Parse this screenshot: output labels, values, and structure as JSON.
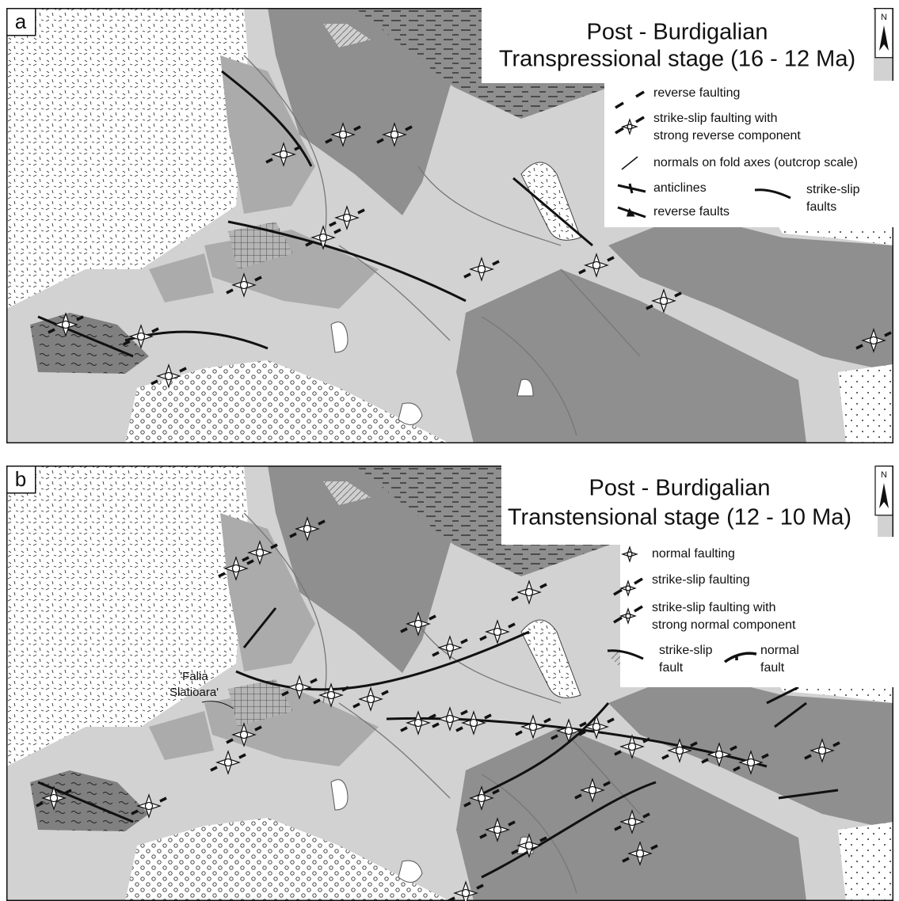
{
  "panels": [
    {
      "label": "a",
      "north": "N",
      "title": "Post - Burdigalian",
      "subtitle": "Transpressional stage (16 - 12 Ma)",
      "legend": [
        {
          "lines": [
            "reverse faulting"
          ]
        },
        {
          "lines": [
            "strike-slip faulting with",
            "strong reverse component"
          ]
        },
        {
          "lines": [
            "normals on fold axes (outcrop scale)"
          ]
        },
        {
          "lines": [
            "anticlines"
          ]
        },
        {
          "lines": [
            "reverse faults"
          ]
        },
        {
          "lines": [
            "strike-slip",
            "faults"
          ]
        }
      ]
    },
    {
      "label": "b",
      "north": "N",
      "title": "Post - Burdigalian",
      "subtitle": "Transtensional stage (12 - 10 Ma)",
      "legend": [
        {
          "lines": [
            "normal faulting"
          ]
        },
        {
          "lines": [
            "strike-slip faulting"
          ]
        },
        {
          "lines": [
            "strike-slip faulting with",
            "strong normal component"
          ]
        },
        {
          "lines": [
            "strike-slip",
            "fault"
          ]
        },
        {
          "lines": [
            "normal",
            "fault"
          ]
        }
      ],
      "annotation": {
        "lines": [
          "'Falia",
          "Slatioara'"
        ]
      }
    }
  ]
}
